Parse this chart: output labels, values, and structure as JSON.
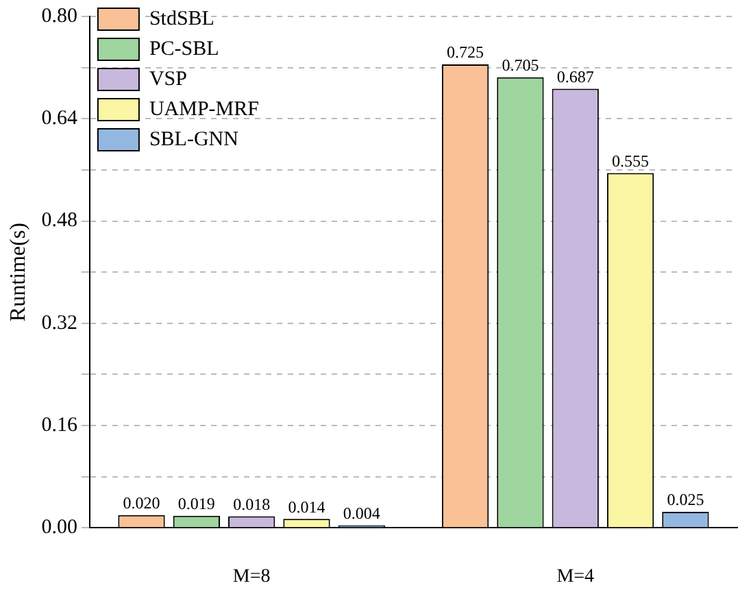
{
  "chart_data": {
    "type": "bar",
    "ylabel": "Runtime(s)",
    "categories": [
      "M=8",
      "M=4"
    ],
    "series": [
      {
        "name": "StdSBL",
        "color": "#f9c195",
        "values": [
          0.02,
          0.725
        ],
        "value_labels": [
          "0.020",
          "0.725"
        ]
      },
      {
        "name": "PC-SBL",
        "color": "#9fd59f",
        "values": [
          0.019,
          0.705
        ],
        "value_labels": [
          "0.019",
          "0.705"
        ]
      },
      {
        "name": "VSP",
        "color": "#c9b8dd",
        "values": [
          0.018,
          0.687
        ],
        "value_labels": [
          "0.018",
          "0.687"
        ]
      },
      {
        "name": "UAMP-MRF",
        "color": "#fbf6a3",
        "values": [
          0.014,
          0.555
        ],
        "value_labels": [
          "0.014",
          "0.555"
        ]
      },
      {
        "name": "SBL-GNN",
        "color": "#93b7e1",
        "values": [
          0.004,
          0.025
        ],
        "value_labels": [
          "0.004",
          "0.025"
        ]
      }
    ],
    "ylim": [
      0,
      0.8
    ],
    "yticks": [
      {
        "value": 0,
        "label": "0.00"
      },
      {
        "value": 0.08,
        "label": null
      },
      {
        "value": 0.16,
        "label": "0.16"
      },
      {
        "value": 0.24,
        "label": null
      },
      {
        "value": 0.32,
        "label": "0.32"
      },
      {
        "value": 0.4,
        "label": null
      },
      {
        "value": 0.48,
        "label": "0.48"
      },
      {
        "value": 0.56,
        "label": null
      },
      {
        "value": 0.64,
        "label": "0.64"
      },
      {
        "value": 0.72,
        "label": null
      },
      {
        "value": 0.8,
        "label": "0.80"
      }
    ],
    "grid": "y",
    "legend": "top left"
  }
}
